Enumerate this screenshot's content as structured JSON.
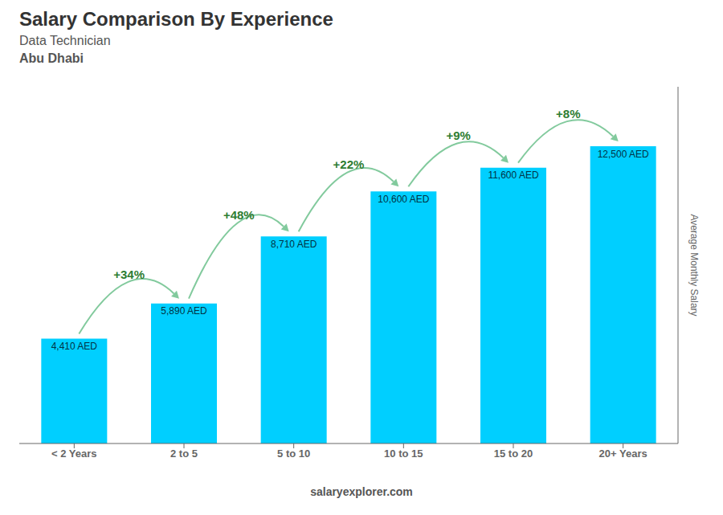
{
  "chart_data": {
    "type": "bar",
    "title": "Salary Comparison By Experience",
    "subtitle": [
      "Data Technician",
      "Abu Dhabi"
    ],
    "categories": [
      "< 2 Years",
      "2 to 5",
      "5 to 10",
      "10 to 15",
      "15 to 20",
      "20+ Years"
    ],
    "values": [
      4410,
      5890,
      8710,
      10600,
      11600,
      12500
    ],
    "value_labels": [
      "4,410 AED",
      "5,890 AED",
      "8,710 AED",
      "10,600 AED",
      "11,600 AED",
      "12,500 AED"
    ],
    "data_labels": true,
    "color": "#00cfff",
    "ylabel": "Average Monthly Salary",
    "ylim": [
      0,
      15000
    ],
    "grid": false,
    "tick_labels": "x",
    "annotations": [
      {
        "text": "+34%",
        "from": "< 2 Years",
        "to": "2 to 5"
      },
      {
        "text": "+48%",
        "from": "2 to 5",
        "to": "5 to 10"
      },
      {
        "text": "+22%",
        "from": "5 to 10",
        "to": "10 to 15"
      },
      {
        "text": "+9%",
        "from": "10 to 15",
        "to": "15 to 20"
      },
      {
        "text": "+8%",
        "from": "15 to 20",
        "to": "20+ Years"
      },
      {
        "text": "salaryexplorer.com"
      }
    ]
  }
}
